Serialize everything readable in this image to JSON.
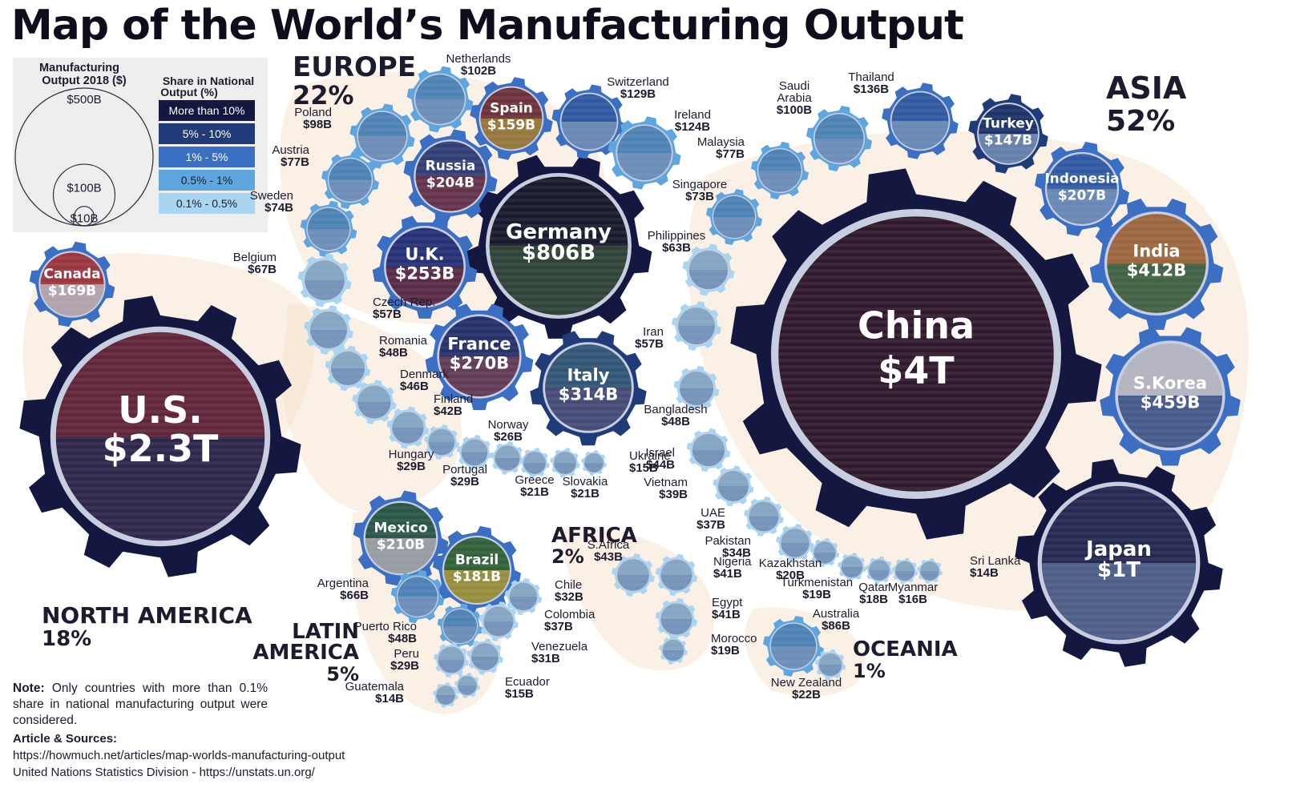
{
  "title": "Map of the World’s Manufacturing Output",
  "legend": {
    "size_title": [
      "Manufacturing",
      "Output 2018 ($)"
    ],
    "size_labels": [
      "$500B",
      "$100B",
      "$10B"
    ],
    "size_values": [
      500,
      100,
      10
    ],
    "share_title": [
      "Share in National",
      "Output (%)"
    ],
    "share_bins": [
      {
        "label": "More than 10%",
        "color": "#14173f"
      },
      {
        "label": "5% - 10%",
        "color": "#1f3b78"
      },
      {
        "label": "1% - 5%",
        "color": "#3a6fc4"
      },
      {
        "label": "0.5% - 1%",
        "color": "#5fa6df"
      },
      {
        "label": "0.1% - 0.5%",
        "color": "#a9d5f2"
      }
    ]
  },
  "regions": [
    {
      "name": "EUROPE",
      "pct": "22%"
    },
    {
      "name": "ASIA",
      "pct": "52%"
    },
    {
      "name": "NORTH AMERICA",
      "pct": "18%"
    },
    {
      "name": "AFRICA",
      "pct": "2%"
    },
    {
      "name": "LATIN",
      "pct": ""
    },
    {
      "name": "AMERICA",
      "pct": "5%"
    },
    {
      "name": "OCEANIA",
      "pct": "1%"
    }
  ],
  "chart_data": {
    "type": "bubble",
    "value_unit": "USD billions",
    "points": [
      {
        "name": "U.S.",
        "label": "$2.3T",
        "value": 2300,
        "tier": 0,
        "flag": "us-flag-icon"
      },
      {
        "name": "Canada",
        "label": "$169B",
        "value": 169,
        "tier": 2,
        "flag": "canada-flag-icon"
      },
      {
        "name": "Mexico",
        "label": "$210B",
        "value": 210,
        "tier": 2,
        "flag": "mexico-flag-icon"
      },
      {
        "name": "Brazil",
        "label": "$181B",
        "value": 181,
        "tier": 2,
        "flag": "brazil-flag-icon"
      },
      {
        "name": "Argentina",
        "label": "$66B",
        "value": 66,
        "tier": 3,
        "flag": "argentina-flag-icon"
      },
      {
        "name": "Chile",
        "label": "$32B",
        "value": 32,
        "tier": 4,
        "flag": "chile-flag-icon"
      },
      {
        "name": "Colombia",
        "label": "$37B",
        "value": 37,
        "tier": 4,
        "flag": "colombia-flag-icon"
      },
      {
        "name": "Puerto Rico",
        "label": "$48B",
        "value": 48,
        "tier": 3,
        "flag": "puerto-rico-flag-icon"
      },
      {
        "name": "Venezuela",
        "label": "$31B",
        "value": 31,
        "tier": 4,
        "flag": "venezuela-flag-icon"
      },
      {
        "name": "Peru",
        "label": "$29B",
        "value": 29,
        "tier": 4,
        "flag": "peru-flag-icon"
      },
      {
        "name": "Ecuador",
        "label": "$15B",
        "value": 15,
        "tier": 4,
        "flag": "ecuador-flag-icon"
      },
      {
        "name": "Guatemala",
        "label": "$14B",
        "value": 14,
        "tier": 4,
        "flag": "guatemala-flag-icon"
      },
      {
        "name": "Germany",
        "label": "$806B",
        "value": 806,
        "tier": 0,
        "flag": "germany-flag-icon"
      },
      {
        "name": "Italy",
        "label": "$314B",
        "value": 314,
        "tier": 1,
        "flag": "italy-flag-icon"
      },
      {
        "name": "France",
        "label": "$270B",
        "value": 270,
        "tier": 2,
        "flag": "france-flag-icon"
      },
      {
        "name": "U.K.",
        "label": "$253B",
        "value": 253,
        "tier": 2,
        "flag": "uk-flag-icon"
      },
      {
        "name": "Russia",
        "label": "$204B",
        "value": 204,
        "tier": 2,
        "flag": "russia-flag-icon"
      },
      {
        "name": "Spain",
        "label": "$159B",
        "value": 159,
        "tier": 2,
        "flag": "spain-flag-icon"
      },
      {
        "name": "Switzerland",
        "label": "$129B",
        "value": 129,
        "tier": 2,
        "flag": "switzerland-flag-icon"
      },
      {
        "name": "Ireland",
        "label": "$124B",
        "value": 124,
        "tier": 3,
        "flag": "ireland-flag-icon"
      },
      {
        "name": "Netherlands",
        "label": "$102B",
        "value": 102,
        "tier": 3,
        "flag": "netherlands-flag-icon"
      },
      {
        "name": "Poland",
        "label": "$98B",
        "value": 98,
        "tier": 3,
        "flag": "poland-flag-icon"
      },
      {
        "name": "Austria",
        "label": "$77B",
        "value": 77,
        "tier": 3,
        "flag": "austria-flag-icon"
      },
      {
        "name": "Sweden",
        "label": "$74B",
        "value": 74,
        "tier": 3,
        "flag": "sweden-flag-icon"
      },
      {
        "name": "Belgium",
        "label": "$67B",
        "value": 67,
        "tier": 4,
        "flag": "belgium-flag-icon"
      },
      {
        "name": "Czech Rep.",
        "label": "$57B",
        "value": 57,
        "tier": 4,
        "flag": "czech-flag-icon"
      },
      {
        "name": "Romania",
        "label": "$48B",
        "value": 48,
        "tier": 4,
        "flag": "romania-flag-icon"
      },
      {
        "name": "Denmark",
        "label": "$46B",
        "value": 46,
        "tier": 4,
        "flag": "denmark-flag-icon"
      },
      {
        "name": "Finland",
        "label": "$42B",
        "value": 42,
        "tier": 4,
        "flag": "finland-flag-icon"
      },
      {
        "name": "Hungary",
        "label": "$29B",
        "value": 29,
        "tier": 4,
        "flag": "hungary-flag-icon"
      },
      {
        "name": "Portugal",
        "label": "$29B",
        "value": 29,
        "tier": 4,
        "flag": "portugal-flag-icon"
      },
      {
        "name": "Norway",
        "label": "$26B",
        "value": 26,
        "tier": 4,
        "flag": "norway-flag-icon"
      },
      {
        "name": "Greece",
        "label": "$21B",
        "value": 21,
        "tier": 4,
        "flag": "greece-flag-icon"
      },
      {
        "name": "Slovakia",
        "label": "$21B",
        "value": 21,
        "tier": 4,
        "flag": "slovakia-flag-icon"
      },
      {
        "name": "Ukraine",
        "label": "$15B",
        "value": 15,
        "tier": 4,
        "flag": "ukraine-flag-icon"
      },
      {
        "name": "China",
        "label": "$4T",
        "value": 4000,
        "tier": 0,
        "flag": "china-flag-icon"
      },
      {
        "name": "Japan",
        "label": "$1T",
        "value": 1000,
        "tier": 0,
        "flag": "japan-flag-icon"
      },
      {
        "name": "S.Korea",
        "label": "$459B",
        "value": 459,
        "tier": 2,
        "flag": "south-korea-flag-icon"
      },
      {
        "name": "India",
        "label": "$412B",
        "value": 412,
        "tier": 2,
        "flag": "india-flag-icon"
      },
      {
        "name": "Indonesia",
        "label": "$207B",
        "value": 207,
        "tier": 2,
        "flag": "indonesia-flag-icon"
      },
      {
        "name": "Turkey",
        "label": "$147B",
        "value": 147,
        "tier": 1,
        "flag": "turkey-flag-icon"
      },
      {
        "name": "Thailand",
        "label": "$136B",
        "value": 136,
        "tier": 2,
        "flag": "thailand-flag-icon"
      },
      {
        "name": "Saudi Arabia",
        "label": "$100B",
        "value": 100,
        "tier": 3,
        "flag": "saudi-arabia-flag-icon"
      },
      {
        "name": "Malaysia",
        "label": "$77B",
        "value": 77,
        "tier": 3,
        "flag": "malaysia-flag-icon"
      },
      {
        "name": "Singapore",
        "label": "$73B",
        "value": 73,
        "tier": 3,
        "flag": "singapore-flag-icon"
      },
      {
        "name": "Philippines",
        "label": "$63B",
        "value": 63,
        "tier": 4,
        "flag": "philippines-flag-icon"
      },
      {
        "name": "Iran",
        "label": "$57B",
        "value": 57,
        "tier": 4,
        "flag": "iran-flag-icon"
      },
      {
        "name": "Bangladesh",
        "label": "$48B",
        "value": 48,
        "tier": 4,
        "flag": "bangladesh-flag-icon"
      },
      {
        "name": "Israel",
        "label": "$44B",
        "value": 44,
        "tier": 4,
        "flag": "israel-flag-icon"
      },
      {
        "name": "Vietnam",
        "label": "$39B",
        "value": 39,
        "tier": 4,
        "flag": "vietnam-flag-icon"
      },
      {
        "name": "UAE",
        "label": "$37B",
        "value": 37,
        "tier": 4,
        "flag": "uae-flag-icon"
      },
      {
        "name": "Pakistan",
        "label": "$34B",
        "value": 34,
        "tier": 4,
        "flag": "pakistan-flag-icon"
      },
      {
        "name": "Kazakhstan",
        "label": "$20B",
        "value": 20,
        "tier": 4,
        "flag": "kazakhstan-flag-icon"
      },
      {
        "name": "Turkmenistan",
        "label": "$19B",
        "value": 19,
        "tier": 4,
        "flag": "turkmenistan-flag-icon"
      },
      {
        "name": "Qatar",
        "label": "$18B",
        "value": 18,
        "tier": 4,
        "flag": "qatar-flag-icon"
      },
      {
        "name": "Myanmar",
        "label": "$16B",
        "value": 16,
        "tier": 4,
        "flag": "myanmar-flag-icon"
      },
      {
        "name": "Sri Lanka",
        "label": "$14B",
        "value": 14,
        "tier": 4,
        "flag": "sri-lanka-flag-icon"
      },
      {
        "name": "S.Africa",
        "label": "$43B",
        "value": 43,
        "tier": 4,
        "flag": "south-africa-flag-icon"
      },
      {
        "name": "Nigeria",
        "label": "$41B",
        "value": 41,
        "tier": 4,
        "flag": "nigeria-flag-icon"
      },
      {
        "name": "Egypt",
        "label": "$41B",
        "value": 41,
        "tier": 4,
        "flag": "egypt-flag-icon"
      },
      {
        "name": "Morocco",
        "label": "$19B",
        "value": 19,
        "tier": 4,
        "flag": "morocco-flag-icon"
      },
      {
        "name": "Australia",
        "label": "$86B",
        "value": 86,
        "tier": 3,
        "flag": "australia-flag-icon"
      },
      {
        "name": "New Zealand",
        "label": "$22B",
        "value": 22,
        "tier": 4,
        "flag": "new-zealand-flag-icon"
      }
    ]
  },
  "note": {
    "label": "Note:",
    "text": "Only countries with more than 0.1% share in national manufacturing output were considered."
  },
  "sources": {
    "header": "Article & Sources:",
    "lines": [
      "https://howmuch.net/articles/map-worlds-manufacturing-output",
      "United Nations Statistics Division - https://unstats.un.org/"
    ]
  }
}
